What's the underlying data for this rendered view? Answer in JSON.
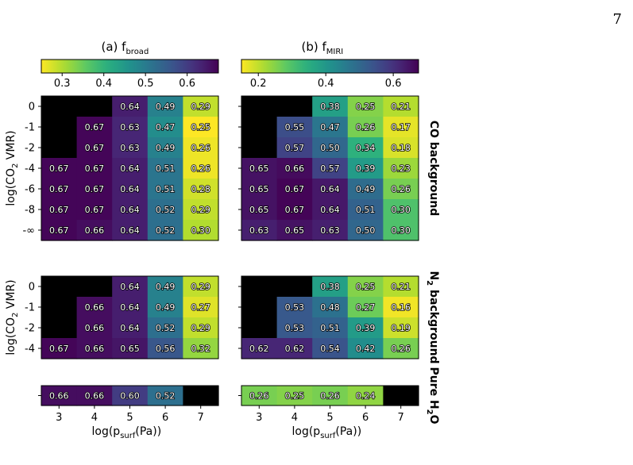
{
  "page_number": "7",
  "chart_data": [
    {
      "type": "heatmap",
      "panel": "a",
      "title_main": "(a) f",
      "title_sub": "broad",
      "colorbar": {
        "vmin": 0.25,
        "vmax": 0.675,
        "ticks": [
          "0.3",
          "0.4",
          "0.5",
          "0.6"
        ]
      },
      "x_categories": [
        "3",
        "4",
        "5",
        "6",
        "7"
      ],
      "xlabel_main": "log(p",
      "xlabel_sub": "surf",
      "xlabel_end": "(Pa))",
      "groups": [
        {
          "label_main": "CO background",
          "y_categories": [
            "0",
            "-1",
            "-2",
            "-4",
            "-6",
            "-8",
            "-∞"
          ],
          "ylabel_main": "log(CO",
          "ylabel_sub": "2",
          "ylabel_end": " VMR)",
          "values": [
            [
              null,
              null,
              0.64,
              0.49,
              0.29
            ],
            [
              null,
              0.67,
              0.63,
              0.47,
              0.25
            ],
            [
              null,
              0.67,
              0.63,
              0.49,
              0.26
            ],
            [
              0.67,
              0.67,
              0.64,
              0.51,
              0.26
            ],
            [
              0.67,
              0.67,
              0.64,
              0.51,
              0.28
            ],
            [
              0.67,
              0.67,
              0.64,
              0.52,
              0.29
            ],
            [
              0.67,
              0.66,
              0.64,
              0.52,
              0.3
            ]
          ]
        },
        {
          "label_main": "N",
          "label_sub": "2",
          "label_end": " background",
          "y_categories": [
            "0",
            "-1",
            "-2",
            "-4"
          ],
          "ylabel_main": "log(CO",
          "ylabel_sub": "2",
          "ylabel_end": " VMR)",
          "values": [
            [
              null,
              null,
              0.64,
              0.49,
              0.29
            ],
            [
              null,
              0.66,
              0.64,
              0.49,
              0.27
            ],
            [
              null,
              0.66,
              0.64,
              0.52,
              0.29
            ],
            [
              0.67,
              0.66,
              0.65,
              0.56,
              0.32
            ]
          ]
        },
        {
          "label_main": "Pure H",
          "label_sub": "2",
          "label_end": "O",
          "y_categories": [],
          "values": [
            [
              0.66,
              0.66,
              0.6,
              0.52,
              null
            ]
          ]
        }
      ]
    },
    {
      "type": "heatmap",
      "panel": "b",
      "title_main": "(b) f",
      "title_sub": "MIRI",
      "colorbar": {
        "vmin": 0.15,
        "vmax": 0.675,
        "ticks": [
          "0.2",
          "0.4",
          "0.6"
        ]
      },
      "x_categories": [
        "3",
        "4",
        "5",
        "6",
        "7"
      ],
      "xlabel_main": "log(p",
      "xlabel_sub": "surf",
      "xlabel_end": "(Pa))",
      "groups": [
        {
          "y_categories": [
            "0",
            "-1",
            "-2",
            "-4",
            "-6",
            "-8",
            "-∞"
          ],
          "values": [
            [
              null,
              null,
              0.38,
              0.25,
              0.21
            ],
            [
              null,
              0.55,
              0.47,
              0.26,
              0.17
            ],
            [
              null,
              0.57,
              0.5,
              0.34,
              0.18
            ],
            [
              0.65,
              0.66,
              0.57,
              0.39,
              0.23
            ],
            [
              0.65,
              0.67,
              0.64,
              0.49,
              0.26
            ],
            [
              0.65,
              0.67,
              0.64,
              0.51,
              0.3
            ],
            [
              0.63,
              0.65,
              0.63,
              0.5,
              0.3
            ]
          ]
        },
        {
          "y_categories": [
            "0",
            "-1",
            "-2",
            "-4"
          ],
          "values": [
            [
              null,
              null,
              0.38,
              0.25,
              0.21
            ],
            [
              null,
              0.53,
              0.48,
              0.27,
              0.16
            ],
            [
              null,
              0.53,
              0.51,
              0.39,
              0.19
            ],
            [
              0.62,
              0.62,
              0.54,
              0.42,
              0.26
            ]
          ]
        },
        {
          "y_categories": [],
          "values": [
            [
              0.26,
              0.25,
              0.26,
              0.24,
              null
            ]
          ]
        }
      ]
    }
  ]
}
